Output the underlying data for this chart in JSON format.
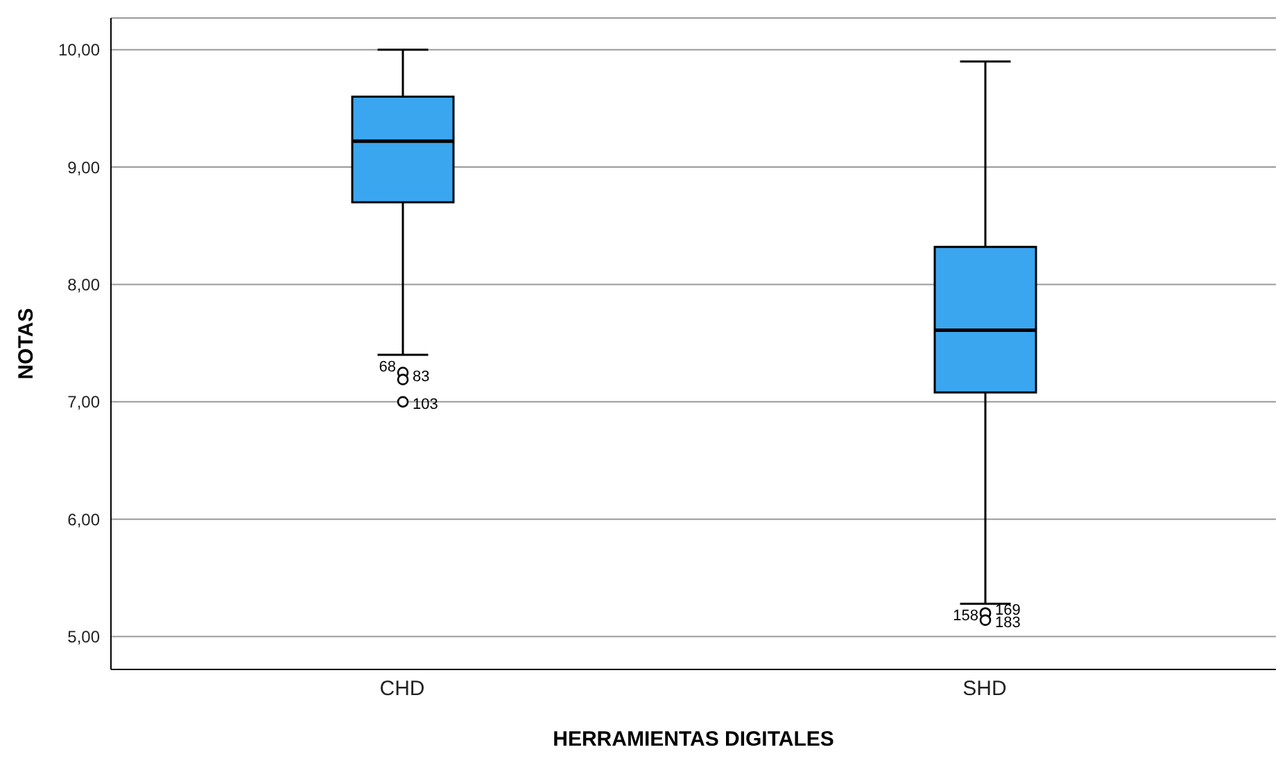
{
  "chart_data": {
    "type": "box",
    "xlabel": "HERRAMIENTAS DIGITALES",
    "ylabel": "NOTAS",
    "categories": [
      "CHD",
      "SHD"
    ],
    "color": "#3ba6f0",
    "boxes": [
      {
        "low": 7.4,
        "q1": 8.7,
        "median": 9.22,
        "q3": 9.6,
        "high": 10.0,
        "outliers": [
          7.25,
          7.19,
          7.0
        ]
      },
      {
        "low": 5.28,
        "q1": 7.08,
        "median": 7.61,
        "q3": 8.32,
        "high": 9.9,
        "outliers": [
          5.2,
          5.2,
          5.14
        ]
      }
    ],
    "ylim": [
      4.72,
      10.27
    ],
    "yticks": [
      {
        "value": 5,
        "label": "5,00"
      },
      {
        "value": 6,
        "label": "6,00"
      },
      {
        "value": 7,
        "label": "7,00"
      },
      {
        "value": 8,
        "label": "8,00"
      },
      {
        "value": 9,
        "label": "9,00"
      },
      {
        "value": 10,
        "label": "10,00"
      }
    ],
    "grid": "y",
    "legend": false,
    "annotations": [
      "68",
      "83",
      "103",
      "158",
      "169",
      "183"
    ]
  }
}
